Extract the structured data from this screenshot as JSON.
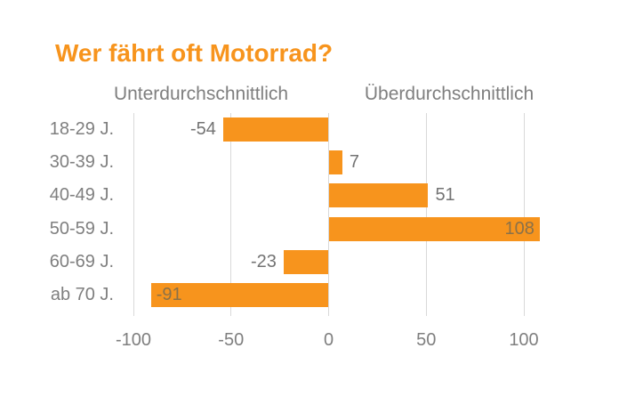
{
  "title": "Wer fährt oft Motorrad?",
  "chart_data": {
    "type": "bar",
    "orientation": "horizontal",
    "title": "Wer fährt oft Motorrad?",
    "categories": [
      "18-29 J.",
      "30-39 J.",
      "40-49 J.",
      "50-59 J.",
      "60-69 J.",
      "ab 70 J."
    ],
    "values": [
      -54,
      7,
      51,
      108,
      -23,
      -91
    ],
    "data_labels": [
      "-54",
      "7",
      "51",
      "108",
      "-23",
      "-91"
    ],
    "axis_headers": {
      "negative": "Unterdurchschnittlich",
      "positive": "Überdurchschnittlich"
    },
    "x_ticks": [
      -100,
      -50,
      0,
      50,
      100
    ],
    "x_tick_labels": [
      "-100",
      "-50",
      "0",
      "50",
      "100"
    ],
    "xlim": [
      -100,
      110
    ],
    "grid": true,
    "legend": "none",
    "xlabel": "",
    "ylabel": ""
  },
  "colors": {
    "background": "#ffffff",
    "bar": "#f7941d",
    "title": "#f7941d",
    "text_gray": "#7f7f7f",
    "value_label": "#737373",
    "value_label_inside": "#8a7149",
    "gridline": "#d9d9d9"
  }
}
